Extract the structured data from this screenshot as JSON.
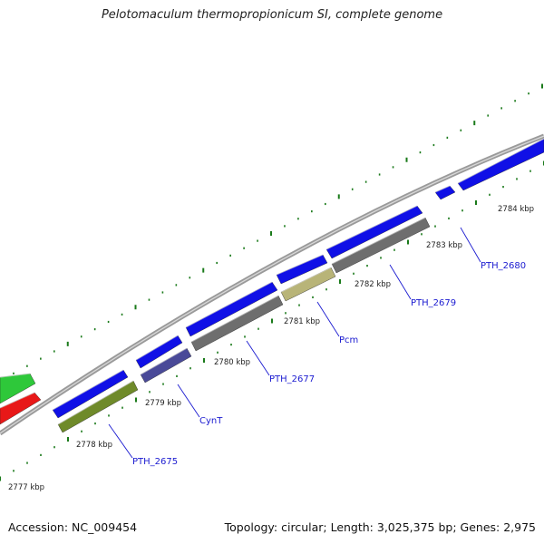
{
  "title": "Pelotomaculum thermopropionicum SI, complete genome",
  "footer": {
    "accession": "Accession: NC_009454",
    "topology": "Topology: circular; Length: 3,025,375 bp; Genes: 2,975"
  },
  "colors": {
    "forward_cds": "#1010e6",
    "reverse_cds": "#6e6e6e",
    "backbone": "#9a9a9a",
    "tick": "#1a7a1a",
    "label_text": "#1a1ad0",
    "olive_cds": "#6f8a2a",
    "slate_cds": "#4a4a98",
    "khaki_cds": "#b8b478",
    "green_cds": "#2ec83a",
    "red_cds": "#e81818"
  },
  "kbp_labels": [
    "2777 kbp",
    "2778 kbp",
    "2779 kbp",
    "2780 kbp",
    "2781 kbp",
    "2782 kbp",
    "2783 kbp",
    "2784 kbp"
  ],
  "gene_labels": [
    "PTH_2675",
    "CynT",
    "PTH_2677",
    "Pcm",
    "PTH_2679",
    "PTH_2680"
  ]
}
